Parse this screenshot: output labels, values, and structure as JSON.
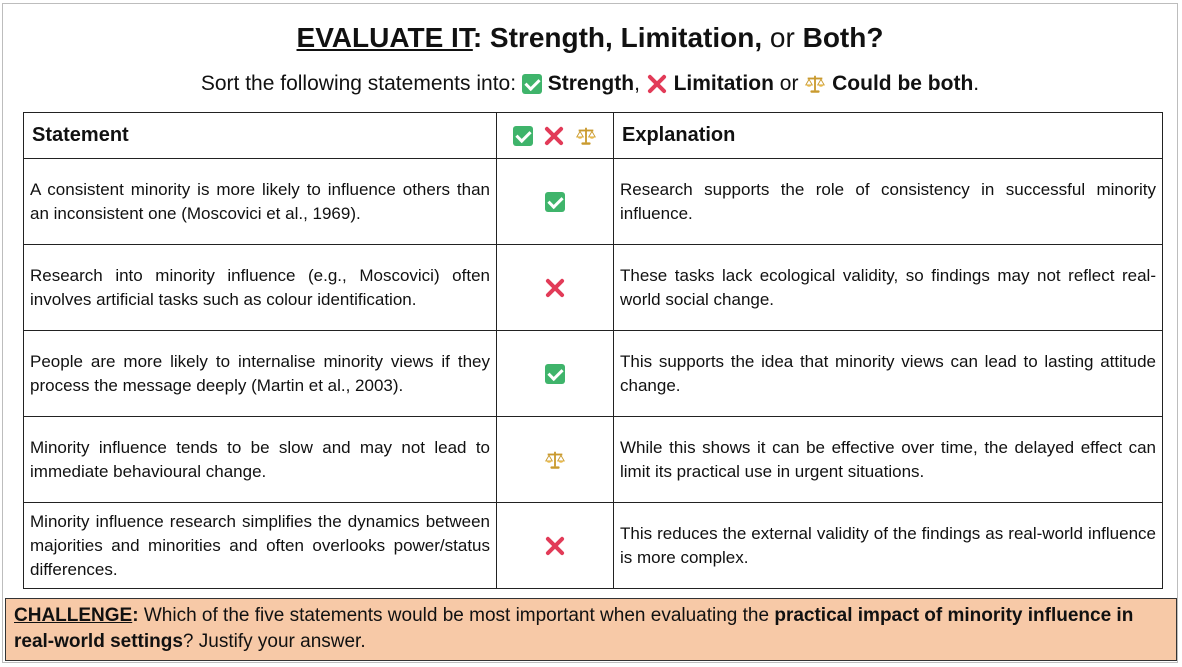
{
  "title": {
    "part1": "EVALUATE IT",
    "part2": ": Strength, Limitation,",
    "or": "or",
    "part3": "Both?"
  },
  "subtitle": {
    "prefix": "Sort the following statements into:",
    "strength": "Strength",
    "comma": ",",
    "limitation": "Limitation",
    "or": "or",
    "both": "Could be both",
    "period": "."
  },
  "table": {
    "headers": {
      "statement": "Statement",
      "explanation": "Explanation"
    },
    "rows": [
      {
        "statement": "A consistent minority is more likely to influence others than an inconsistent one (Moscovici et al., 1969).",
        "mark": "check-icon",
        "explanation": "Research supports the role of consistency in successful minority influence."
      },
      {
        "statement": "Research into minority influence (e.g., Moscovici) often involves artificial tasks such as colour identification.",
        "mark": "cross-icon",
        "explanation": "These tasks lack ecological validity, so findings may not reflect real-world social change."
      },
      {
        "statement": "People are more likely to internalise minority views if they process the message deeply (Martin et al., 2003).",
        "mark": "check-icon",
        "explanation": "This supports the idea that minority views can lead to lasting attitude change."
      },
      {
        "statement": "Minority influence tends to be slow and may not lead to immediate behavioural change.",
        "mark": "scale-icon",
        "explanation": "While this shows it can be effective over time, the delayed effect can limit its practical use in urgent situations."
      },
      {
        "statement": "Minority influence research simplifies the dynamics between majorities and minorities and often overlooks power/status differences.",
        "mark": "cross-icon",
        "explanation": "This reduces the external validity of the findings as real-world influence is more complex."
      }
    ]
  },
  "challenge": {
    "label": "CHALLENGE",
    "colon": ":",
    "text1": "Which of the five statements would be most important when evaluating the",
    "bold": "practical impact of minority influence in real-world settings",
    "text2": "? Justify your answer."
  },
  "colors": {
    "check": "#3fb46b",
    "cross": "#e23b58",
    "challenge_bg": "#f7c9a7"
  }
}
